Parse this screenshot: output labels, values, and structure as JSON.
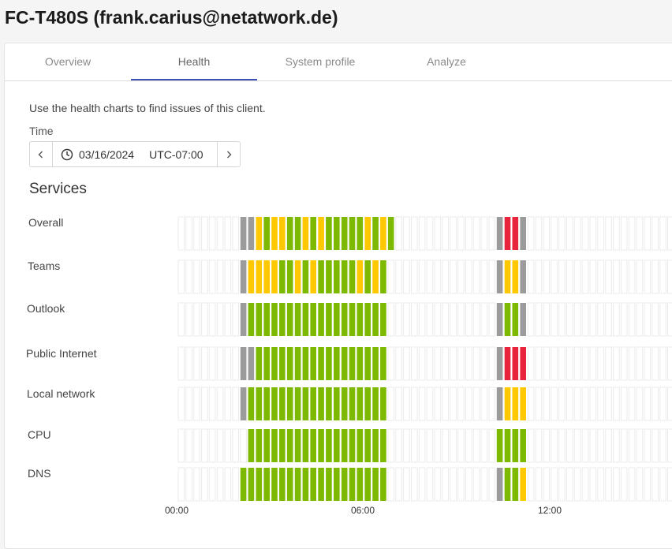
{
  "header": {
    "title": "FC-T480S (frank.carius@netatwork.de)"
  },
  "tabs": [
    {
      "label": "Overview",
      "active": false
    },
    {
      "label": "Health",
      "active": true
    },
    {
      "label": "System profile",
      "active": false
    },
    {
      "label": "Analyze",
      "active": false
    }
  ],
  "health": {
    "intro": "Use the health charts to find issues of this client.",
    "time_label": "Time",
    "date": "03/16/2024",
    "timezone": "UTC-07:00",
    "section_title": "Services"
  },
  "colors": {
    "empty": "#ebebeb",
    "grey": "#9b9b9b",
    "green": "#7cb900",
    "yellow": "#ffc800",
    "red": "#e8243c"
  },
  "chart_data": {
    "type": "heatmap",
    "interval_minutes": 30,
    "x_ticks": [
      "00:00",
      "06:00",
      "12:00"
    ],
    "services": [
      {
        "name": "Overall",
        "runs": [
          [
            8,
            "grey",
            2
          ],
          [
            10,
            "yellow",
            1
          ],
          [
            11,
            "green",
            1
          ],
          [
            12,
            "yellow",
            2
          ],
          [
            14,
            "green",
            2
          ],
          [
            16,
            "yellow",
            1
          ],
          [
            17,
            "green",
            1
          ],
          [
            18,
            "yellow",
            1
          ],
          [
            19,
            "green",
            5
          ],
          [
            24,
            "yellow",
            1
          ],
          [
            25,
            "green",
            1
          ],
          [
            26,
            "yellow",
            1
          ],
          [
            27,
            "green",
            1
          ],
          [
            41,
            "grey",
            1
          ],
          [
            42,
            "red",
            2
          ],
          [
            44,
            "grey",
            1
          ]
        ]
      },
      {
        "name": "Teams",
        "runs": [
          [
            8,
            "grey",
            1
          ],
          [
            9,
            "yellow",
            4
          ],
          [
            13,
            "green",
            2
          ],
          [
            15,
            "yellow",
            1
          ],
          [
            16,
            "green",
            1
          ],
          [
            17,
            "yellow",
            1
          ],
          [
            18,
            "green",
            5
          ],
          [
            23,
            "yellow",
            1
          ],
          [
            24,
            "green",
            1
          ],
          [
            25,
            "yellow",
            1
          ],
          [
            26,
            "green",
            1
          ],
          [
            41,
            "grey",
            1
          ],
          [
            42,
            "yellow",
            2
          ],
          [
            44,
            "grey",
            1
          ]
        ]
      },
      {
        "name": "Outlook",
        "runs": [
          [
            8,
            "grey",
            1
          ],
          [
            9,
            "green",
            18
          ],
          [
            41,
            "grey",
            1
          ],
          [
            42,
            "green",
            2
          ],
          [
            44,
            "grey",
            1
          ]
        ]
      },
      {
        "name": "Public Internet",
        "runs": [
          [
            8,
            "grey",
            2
          ],
          [
            10,
            "green",
            17
          ],
          [
            41,
            "grey",
            1
          ],
          [
            42,
            "red",
            3
          ]
        ]
      },
      {
        "name": "Local network",
        "runs": [
          [
            8,
            "grey",
            1
          ],
          [
            9,
            "green",
            18
          ],
          [
            41,
            "grey",
            1
          ],
          [
            42,
            "yellow",
            3
          ]
        ]
      },
      {
        "name": "CPU",
        "runs": [
          [
            9,
            "green",
            18
          ],
          [
            41,
            "green",
            4
          ]
        ]
      },
      {
        "name": "DNS",
        "runs": [
          [
            8,
            "green",
            19
          ],
          [
            41,
            "grey",
            1
          ],
          [
            42,
            "green",
            2
          ],
          [
            44,
            "yellow",
            1
          ]
        ]
      }
    ]
  }
}
